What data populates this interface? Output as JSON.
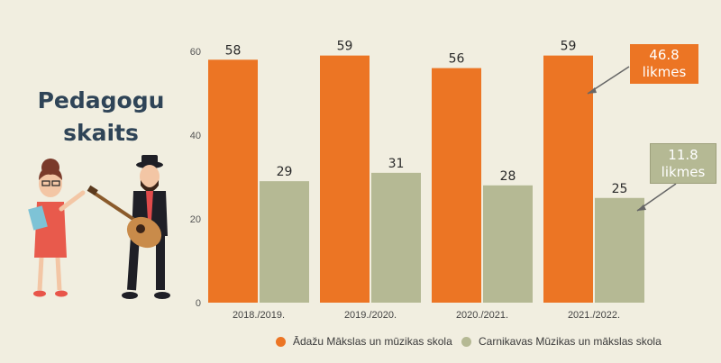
{
  "title_line1": "Pedagogu",
  "title_line2": "skaits",
  "callouts": [
    {
      "value": "46.8",
      "unit": "likmes"
    },
    {
      "value": "11.8",
      "unit": "likmes"
    }
  ],
  "colors": {
    "orange": "#ec7524",
    "green": "#b5b994"
  },
  "chart_data": {
    "type": "bar",
    "categories": [
      "2018./2019.",
      "2019./2020.",
      "2020./2021.",
      "2021./2022."
    ],
    "series": [
      {
        "name": "Ādažu Mākslas un mūzikas skola",
        "values": [
          58,
          59,
          56,
          59
        ],
        "color": "#ec7524"
      },
      {
        "name": "Carnikavas Mūzikas un mākslas skola",
        "values": [
          29,
          31,
          28,
          25
        ],
        "color": "#b5b994"
      }
    ],
    "ylim": [
      0,
      60
    ],
    "yticks": [
      0,
      20,
      40,
      60
    ],
    "grid": false,
    "legend": "bottom"
  }
}
